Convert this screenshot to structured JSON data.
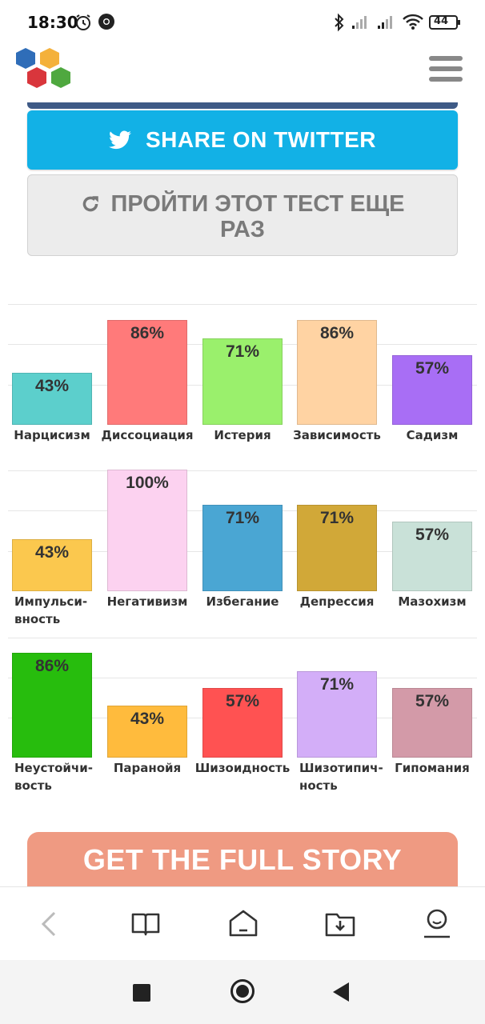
{
  "status_bar": {
    "time": "18:30",
    "battery": "44"
  },
  "buttons": {
    "twitter": "SHARE ON TWITTER",
    "retake_line1": "ПРОЙТИ ЭТОТ ТЕСТ ЕЩЕ",
    "retake_line2": "РАЗ",
    "story": "GET THE FULL STORY"
  },
  "colors": {
    "twitter": "#12b1e6",
    "story": "#ef9a82"
  },
  "icons": [
    "logo-hexagons",
    "hamburger-menu",
    "twitter-bird",
    "refresh",
    "back",
    "book",
    "home",
    "download-folder",
    "profile"
  ],
  "chart_data": [
    {
      "type": "bar",
      "categories": [
        "Нарцисизм",
        "Диссоциация",
        "Истерия",
        "Зависимость",
        "Садизм"
      ],
      "values": [
        43,
        86,
        71,
        86,
        57
      ],
      "labels": [
        "43%",
        "86%",
        "71%",
        "86%",
        "57%"
      ],
      "colors": [
        "#5ccfcc",
        "#ff7a7a",
        "#9af06c",
        "#ffd3a3",
        "#a86ef5"
      ],
      "ylim": [
        0,
        100
      ]
    },
    {
      "type": "bar",
      "categories": [
        "Импульси-\nвность",
        "Негативизм",
        "Избегание",
        "Депрессия",
        "Мазохизм"
      ],
      "values": [
        43,
        100,
        71,
        71,
        57
      ],
      "labels": [
        "43%",
        "100%",
        "71%",
        "71%",
        "57%"
      ],
      "colors": [
        "#fbc84e",
        "#fcd2f0",
        "#4aa6d3",
        "#d1a838",
        "#c9e1d8"
      ],
      "ylim": [
        0,
        100
      ]
    },
    {
      "type": "bar",
      "categories": [
        "Неустойчи-\nвость",
        "Паранойя",
        "Шизоидность",
        "Шизотипич-\nность",
        "Гипомания"
      ],
      "values": [
        86,
        43,
        57,
        71,
        57
      ],
      "labels": [
        "86%",
        "43%",
        "57%",
        "71%",
        "57%"
      ],
      "colors": [
        "#27bd0d",
        "#ffbb3d",
        "#ff5252",
        "#d3aef8",
        "#d39aa8"
      ],
      "ylim": [
        0,
        100
      ]
    }
  ]
}
